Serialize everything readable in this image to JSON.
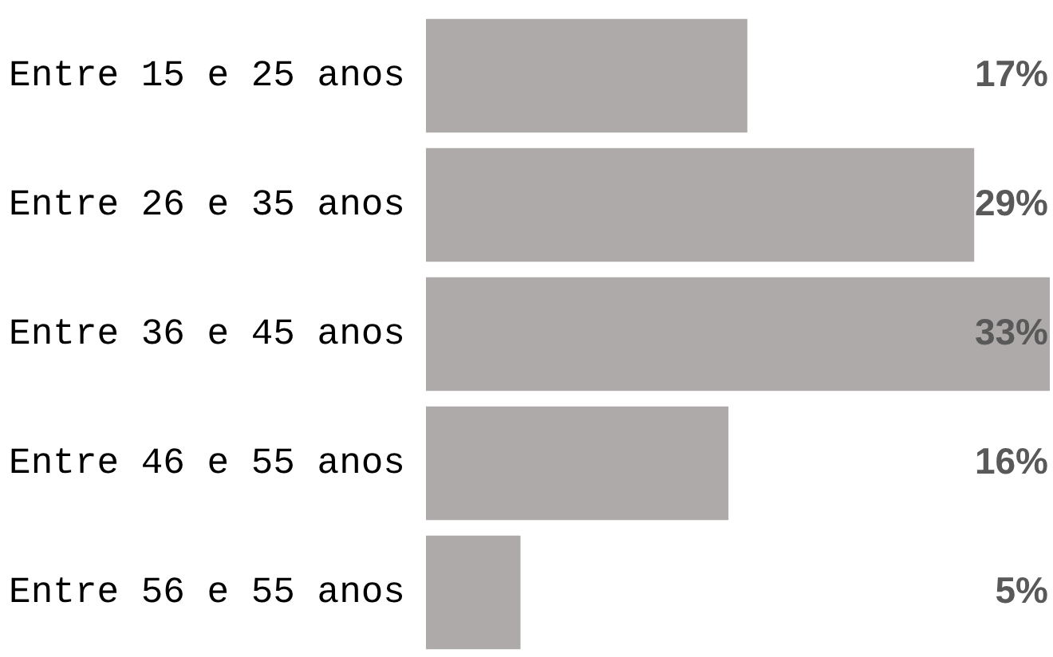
{
  "chart_data": {
    "type": "bar",
    "orientation": "horizontal",
    "categories": [
      "Entre 15 e 25 anos",
      "Entre 26 e 35 anos",
      "Entre 36 e 45 anos",
      "Entre 46 e 55 anos",
      "Entre 56 e 55 anos"
    ],
    "values": [
      17,
      29,
      33,
      16,
      5
    ],
    "color": "#aeaaaa",
    "value_labels": [
      "17%",
      "29%",
      "33%",
      "16%",
      "5%"
    ]
  }
}
